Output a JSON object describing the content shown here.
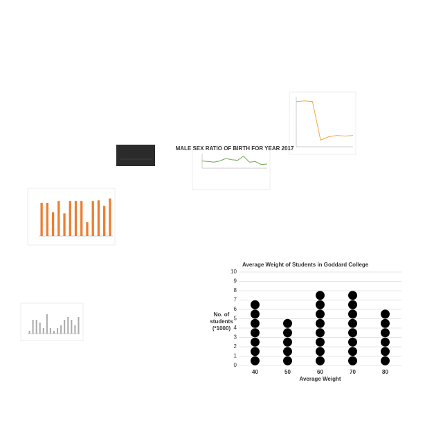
{
  "chart_data": [
    {
      "type": "dot",
      "title": "Average Weight of Students in Goddard College",
      "xlabel": "Average Weight",
      "ylabel": [
        "No. of",
        "students",
        "(*1000)"
      ],
      "categories": [
        "40",
        "50",
        "60",
        "70",
        "80"
      ],
      "values": [
        7,
        5,
        8,
        8,
        6
      ],
      "ylim": [
        0,
        10
      ],
      "yticks": [
        0,
        1,
        2,
        3,
        4,
        5,
        6,
        7,
        8,
        9,
        10
      ],
      "grid": true,
      "color": "#000000"
    },
    {
      "type": "line",
      "title": "MALE SEX RATIO OF BIRTH FOR YEAR 2017",
      "color": "#6aa84f",
      "values": [
        1.06,
        1.055,
        1.05,
        1.06,
        1.08,
        1.07,
        1.065,
        1.1,
        1.05,
        1.055,
        1.03,
        1.035
      ],
      "ylim": [
        1.0,
        1.12
      ]
    },
    {
      "type": "line",
      "color": "#f4a742",
      "values": [
        98,
        99,
        98,
        40,
        45,
        47,
        46,
        47
      ],
      "ylim": [
        30,
        105
      ]
    },
    {
      "type": "bar",
      "color": "#ed7d31",
      "values": [
        265,
        265,
        190,
        280,
        180,
        280,
        280,
        280,
        110,
        280,
        285,
        240,
        300
      ],
      "ylim": [
        0,
        320
      ]
    },
    {
      "type": "bar",
      "color": "#aaaaaa",
      "values": [
        1,
        5,
        5,
        4,
        2,
        7,
        2,
        1,
        2,
        3,
        5,
        6,
        5,
        3,
        6
      ],
      "ylim": [
        0,
        9
      ]
    }
  ]
}
